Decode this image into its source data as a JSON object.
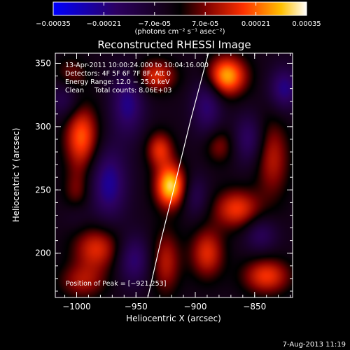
{
  "colorbar": {
    "ticks": [
      "-0.00035",
      "-0.00021",
      "-7.0e-05",
      "7.0e-05",
      "0.00021",
      "0.00035"
    ],
    "units": "(photons cm⁻² s⁻¹ asec⁻²)"
  },
  "footer": {
    "date": "7-Aug-2013 11:19"
  },
  "chart_data": {
    "type": "heatmap",
    "title": "Reconstructed RHESSI Image",
    "xlabel": "Heliocentric X (arcsec)",
    "ylabel": "Heliocentric Y (arcsec)",
    "xlim": [
      -1018,
      -818
    ],
    "ylim": [
      165,
      358
    ],
    "xticks": [
      -1000,
      -950,
      -900,
      -850
    ],
    "yticks": [
      200,
      250,
      300,
      350
    ],
    "xtick_labels": [
      "−1000",
      "−950",
      "−900",
      "−850"
    ],
    "ytick_labels": [
      "200",
      "250",
      "300",
      "350"
    ],
    "colorbar_range": [
      -0.00035,
      0.00035
    ],
    "peak": {
      "x": -921,
      "y": 253
    },
    "annotations": [
      "13-Apr-2011 10:00:24.000 to 10:04:16.000",
      "Detectors: 4F 5F 6F 7F 8F, Att 0",
      "Energy Range: 12.0 − 25.0 keV",
      "Clean     Total counts: 8.06E+03"
    ],
    "peak_label": "Position of Peak = [−921,253]",
    "limb_curve": [
      [
        -940,
        165
      ],
      [
        -929,
        210
      ],
      [
        -917,
        255
      ],
      [
        -904,
        305
      ],
      [
        -889,
        358
      ]
    ],
    "sources": [
      {
        "x": -921,
        "y": 253,
        "amp": 1.0,
        "sx": 9,
        "sy": 12
      },
      {
        "x": -930,
        "y": 282,
        "amp": 0.55,
        "sx": 8,
        "sy": 10
      },
      {
        "x": -874,
        "y": 340,
        "amp": 0.9,
        "sx": 12,
        "sy": 11
      },
      {
        "x": -996,
        "y": 292,
        "amp": 0.7,
        "sx": 10,
        "sy": 18
      },
      {
        "x": -1000,
        "y": 245,
        "amp": 0.35,
        "sx": 8,
        "sy": 14
      },
      {
        "x": -983,
        "y": 204,
        "amp": 0.55,
        "sx": 14,
        "sy": 12
      },
      {
        "x": -995,
        "y": 178,
        "amp": 0.4,
        "sx": 14,
        "sy": 10
      },
      {
        "x": -925,
        "y": 193,
        "amp": 0.45,
        "sx": 9,
        "sy": 18
      },
      {
        "x": -933,
        "y": 340,
        "amp": 0.55,
        "sx": 12,
        "sy": 9
      },
      {
        "x": -880,
        "y": 285,
        "amp": 0.35,
        "sx": 9,
        "sy": 10
      },
      {
        "x": -865,
        "y": 235,
        "amp": 0.6,
        "sx": 14,
        "sy": 11
      },
      {
        "x": -890,
        "y": 200,
        "amp": 0.55,
        "sx": 10,
        "sy": 14
      },
      {
        "x": -840,
        "y": 182,
        "amp": 0.6,
        "sx": 14,
        "sy": 10
      },
      {
        "x": -835,
        "y": 275,
        "amp": 0.45,
        "sx": 10,
        "sy": 22
      },
      {
        "x": -1005,
        "y": 340,
        "amp": 0.35,
        "sx": 10,
        "sy": 10
      },
      {
        "x": -973,
        "y": 255,
        "amp": -0.55,
        "sx": 11,
        "sy": 20
      },
      {
        "x": -957,
        "y": 318,
        "amp": -0.5,
        "sx": 10,
        "sy": 18
      },
      {
        "x": -890,
        "y": 318,
        "amp": -0.45,
        "sx": 9,
        "sy": 18
      },
      {
        "x": -952,
        "y": 195,
        "amp": -0.45,
        "sx": 10,
        "sy": 14
      },
      {
        "x": -1010,
        "y": 323,
        "amp": -0.35,
        "sx": 10,
        "sy": 12
      },
      {
        "x": -825,
        "y": 330,
        "amp": -0.5,
        "sx": 9,
        "sy": 12
      },
      {
        "x": -855,
        "y": 290,
        "amp": -0.4,
        "sx": 9,
        "sy": 14
      },
      {
        "x": -900,
        "y": 245,
        "amp": -0.3,
        "sx": 8,
        "sy": 12
      },
      {
        "x": -845,
        "y": 215,
        "amp": -0.35,
        "sx": 10,
        "sy": 10
      },
      {
        "x": -1000,
        "y": 232,
        "amp": -0.25,
        "sx": 8,
        "sy": 10
      }
    ]
  }
}
